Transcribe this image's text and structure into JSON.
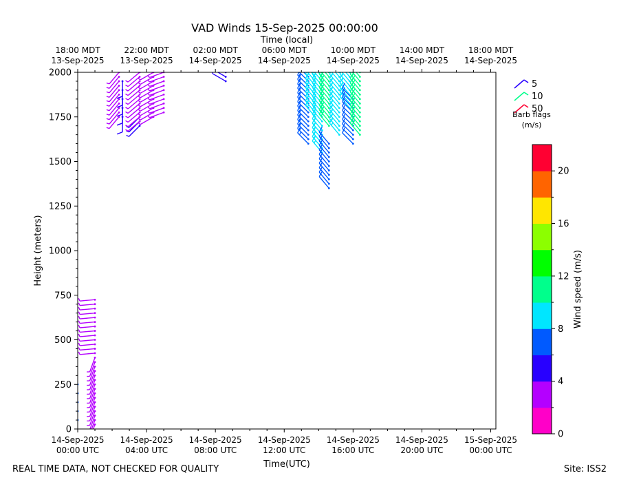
{
  "chart_data": {
    "type": "wind-barb",
    "title": "VAD Winds 15-Sep-2025 00:00:00",
    "top_axis_label": "Time (local)",
    "xlabel": "Time(UTC)",
    "ylabel": "Height (meters)",
    "x_range_hours": [
      0,
      24.3
    ],
    "ylim": [
      0,
      2000
    ],
    "y_ticks": [
      "0",
      "250",
      "500",
      "750",
      "1000",
      "1250",
      "1500",
      "1750",
      "2000"
    ],
    "x_ticks": [
      {
        "h": 0,
        "line1": "14-Sep-2025",
        "line2": "00:00 UTC"
      },
      {
        "h": 4,
        "line1": "14-Sep-2025",
        "line2": "04:00 UTC"
      },
      {
        "h": 8,
        "line1": "14-Sep-2025",
        "line2": "08:00 UTC"
      },
      {
        "h": 12,
        "line1": "14-Sep-2025",
        "line2": "12:00 UTC"
      },
      {
        "h": 16,
        "line1": "14-Sep-2025",
        "line2": "16:00 UTC"
      },
      {
        "h": 20,
        "line1": "14-Sep-2025",
        "line2": "20:00 UTC"
      },
      {
        "h": 24,
        "line1": "15-Sep-2025",
        "line2": "00:00 UTC"
      }
    ],
    "top_ticks": [
      {
        "h": 0,
        "line1": "18:00 MDT",
        "line2": "13-Sep-2025"
      },
      {
        "h": 4,
        "line1": "22:00 MDT",
        "line2": "13-Sep-2025"
      },
      {
        "h": 8,
        "line1": "02:00 MDT",
        "line2": "14-Sep-2025"
      },
      {
        "h": 12,
        "line1": "06:00 MDT",
        "line2": "14-Sep-2025"
      },
      {
        "h": 16,
        "line1": "10:00 MDT",
        "line2": "14-Sep-2025"
      },
      {
        "h": 20,
        "line1": "14:00 MDT",
        "line2": "14-Sep-2025"
      },
      {
        "h": 24,
        "line1": "18:00 MDT",
        "line2": "14-Sep-2025"
      }
    ],
    "colorbar": {
      "label": "Wind speed (m/s)",
      "range": [
        0,
        22
      ],
      "ticks": [
        "0",
        "4",
        "8",
        "12",
        "16",
        "20"
      ],
      "colors": [
        "#ff00c8",
        "#b400ff",
        "#2800ff",
        "#005aff",
        "#00e6ff",
        "#00ff8c",
        "#00ff00",
        "#8cff00",
        "#ffe600",
        "#ff6400",
        "#ff0032"
      ]
    },
    "legend": {
      "title_line1": "Barb flags",
      "title_line2": "(m/s)",
      "items": [
        {
          "label": "5",
          "color": "#2800ff"
        },
        {
          "label": "10",
          "color": "#00ff8c"
        },
        {
          "label": "50",
          "color": "#ff0032"
        }
      ]
    },
    "profiles": [
      {
        "h": 0.0,
        "speed": 6.5,
        "dir": 250,
        "heights": [
          50,
          100,
          150,
          200,
          250
        ]
      },
      {
        "h": 1.0,
        "speed": 3.0,
        "dir": 200,
        "heights": [
          25,
          50,
          75,
          100,
          125,
          150,
          175,
          200,
          225,
          250,
          275,
          300,
          325,
          350,
          375,
          400
        ]
      },
      {
        "h": 1.0,
        "speed": 3.5,
        "dir": 265,
        "heights": [
          425,
          450,
          475,
          500,
          525,
          550,
          575,
          600,
          625,
          650,
          675,
          700,
          725
        ]
      },
      {
        "h": 2.4,
        "speed": 3.0,
        "dir": 220,
        "heights": [
          1750,
          1775,
          1800,
          1825,
          1850,
          1875,
          1900,
          1925,
          1950,
          1975,
          2000
        ]
      },
      {
        "h": 2.6,
        "speed": 5.5,
        "dir": 180,
        "heights": [
          1750,
          1800,
          1850,
          1900,
          1950
        ]
      },
      {
        "h": 3.6,
        "speed": 4.5,
        "dir": 225,
        "heights": [
          1700,
          1725,
          1750
        ]
      },
      {
        "h": 3.6,
        "speed": 3.0,
        "dir": 230,
        "heights": [
          1725,
          1750,
          1775,
          1800,
          1825,
          1850,
          1875,
          1900,
          1925,
          1950,
          1975,
          2000
        ]
      },
      {
        "h": 4.4,
        "speed": 3.0,
        "dir": 240,
        "heights": [
          1750,
          1775,
          1800,
          1825,
          1850,
          1875,
          1900,
          1925,
          1950,
          1975,
          2000
        ]
      },
      {
        "h": 5.0,
        "speed": 3.0,
        "dir": 250,
        "heights": [
          1775,
          1800,
          1825,
          1850,
          1875,
          1900,
          1925,
          1950,
          1975,
          2000
        ]
      },
      {
        "h": 8.6,
        "speed": 5.0,
        "dir": 300,
        "heights": [
          1950,
          1975,
          2000
        ]
      },
      {
        "h": 13.4,
        "speed": 7.5,
        "dir": 315,
        "heights": [
          1600,
          1625,
          1650,
          1675,
          1700,
          1725,
          1750,
          1775,
          1800,
          1825,
          1850,
          1875,
          1900,
          1925,
          1950,
          1975,
          2000
        ]
      },
      {
        "h": 13.8,
        "speed": 9.0,
        "dir": 320,
        "heights": [
          1750,
          1775,
          1800,
          1825,
          1850,
          1875,
          1900,
          1925,
          1950,
          1975,
          2000
        ]
      },
      {
        "h": 14.2,
        "speed": 9.5,
        "dir": 320,
        "heights": [
          1550,
          1575,
          1600,
          1625,
          1650,
          1675,
          1700,
          1725,
          1750,
          1775,
          1800,
          1825,
          1850,
          1875,
          1900,
          1925,
          1950,
          1975,
          2000
        ]
      },
      {
        "h": 14.6,
        "speed": 7.0,
        "dir": 320,
        "heights": [
          1350,
          1375,
          1400,
          1425,
          1450,
          1475,
          1500,
          1525,
          1550,
          1575,
          1600
        ]
      },
      {
        "h": 14.6,
        "speed": 10.5,
        "dir": 320,
        "heights": [
          1700,
          1725,
          1750,
          1775,
          1800,
          1825,
          1850,
          1875,
          1900,
          1925,
          1950,
          1975,
          2000
        ]
      },
      {
        "h": 15.2,
        "speed": 9.0,
        "dir": 320,
        "heights": [
          1650,
          1675,
          1700,
          1725,
          1750,
          1775,
          1800,
          1825,
          1850,
          1875,
          1900,
          1925,
          1950,
          1975,
          2000
        ]
      },
      {
        "h": 15.8,
        "speed": 9.5,
        "dir": 320,
        "heights": [
          1800,
          1825,
          1850,
          1875,
          1900,
          1925,
          1950,
          1975,
          2000
        ]
      },
      {
        "h": 16.0,
        "speed": 7.0,
        "dir": 315,
        "heights": [
          1600,
          1625,
          1650,
          1675,
          1700,
          1725,
          1750,
          1775,
          1800,
          1825,
          1850
        ]
      },
      {
        "h": 16.4,
        "speed": 11.0,
        "dir": 320,
        "heights": [
          1650,
          1675,
          1700,
          1725,
          1750,
          1775,
          1800,
          1825,
          1850,
          1875,
          1900,
          1925,
          1950,
          1975,
          2000
        ]
      }
    ]
  },
  "footer": {
    "left": "REAL TIME DATA, NOT CHECKED FOR QUALITY",
    "right": "Site: ISS2"
  }
}
